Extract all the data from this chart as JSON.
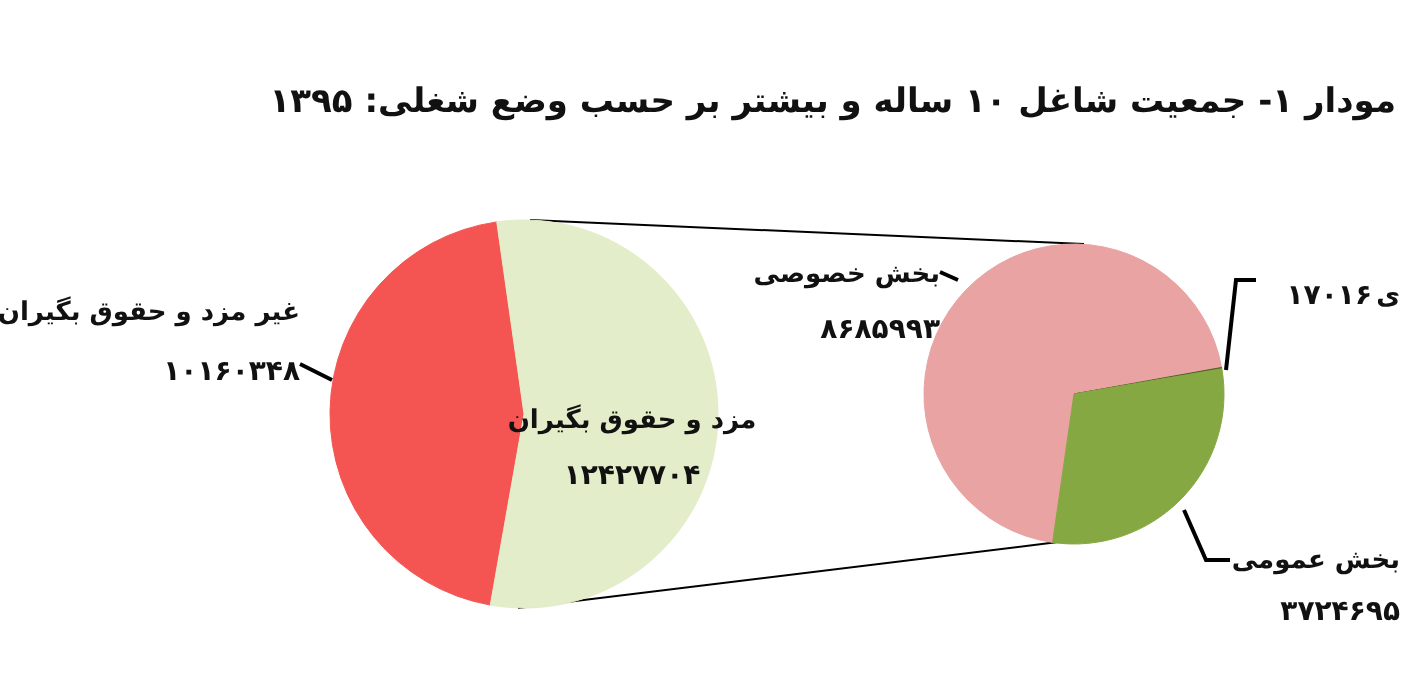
{
  "chart_data": [
    {
      "type": "pie",
      "title": "مودار ۱- جمعیت شاغل ۱۰ ساله و بیشتر بر حسب وضع شغلی: ۱۳۹۵",
      "categories": [
        "غیر مزد و حقوق بگیران",
        "مزد و حقوق بگیران"
      ],
      "values": [
        10160348,
        12427704
      ],
      "value_labels": [
        "۱۰۱۶۰۳۴۸",
        "۱۲۴۲۷۷۰۴"
      ],
      "colors": [
        "#f45552",
        "#e3edc9"
      ]
    },
    {
      "type": "pie",
      "categories": [
        "بخش خصوصی",
        "ی",
        "بخش عمومی"
      ],
      "values": [
        8685993,
        17016,
        3724695
      ],
      "value_labels": [
        "۸۶۸۵۹۹۳",
        "۱۷۰۱۶",
        "۳۷۲۴۶۹۵"
      ],
      "colors": [
        "#e8a3a2",
        "#4f6228",
        "#86a843"
      ]
    }
  ]
}
